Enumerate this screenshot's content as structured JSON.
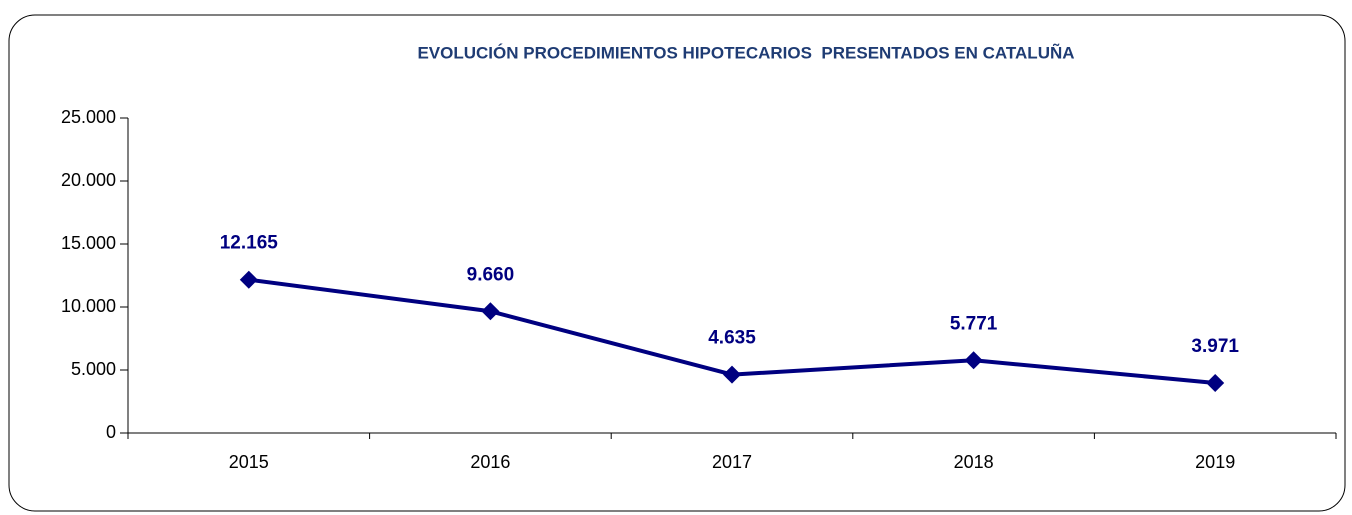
{
  "chart_data": {
    "type": "line",
    "title": "EVOLUCIÓN PROCEDIMIENTOS HIPOTECARIOS  PRESENTADOS EN CATALUÑA",
    "categories": [
      "2015",
      "2016",
      "2017",
      "2018",
      "2019"
    ],
    "values": [
      12165,
      9660,
      4635,
      5771,
      3971
    ],
    "value_labels": [
      "12.165",
      "9.660",
      "4.635",
      "5.771",
      "3.971"
    ],
    "color": "#000080",
    "ylim": [
      0,
      25000
    ],
    "yticks": [
      0,
      {
        "value": 5000,
        "label": "5.000"
      },
      {
        "value": 10000,
        "label": "10.000"
      },
      {
        "value": 15000,
        "label": "15.000"
      },
      {
        "value": 20000,
        "label": "20.000"
      },
      {
        "value": 25000,
        "label": "25.000"
      }
    ],
    "grid": false
  }
}
